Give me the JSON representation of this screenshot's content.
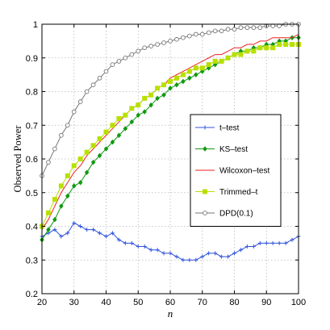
{
  "chart_data": {
    "type": "line",
    "xlabel": "n",
    "ylabel": "Observed Power",
    "xlim": [
      20,
      100
    ],
    "ylim": [
      0.2,
      1.0
    ],
    "xticks": [
      20,
      30,
      40,
      50,
      60,
      70,
      80,
      90,
      100
    ],
    "yticks": [
      0.2,
      0.3,
      0.4,
      0.5,
      0.6,
      0.7,
      0.8,
      0.9,
      1.0
    ],
    "grid": true,
    "legend_position": "right",
    "series": [
      {
        "name": "t–test",
        "color": "#3355dd",
        "marker": "plus",
        "x": [
          20,
          22,
          24,
          26,
          28,
          30,
          32,
          34,
          36,
          38,
          40,
          42,
          44,
          46,
          48,
          50,
          52,
          54,
          56,
          58,
          60,
          62,
          64,
          66,
          68,
          70,
          72,
          74,
          76,
          78,
          80,
          82,
          84,
          86,
          88,
          90,
          92,
          94,
          96,
          98,
          100
        ],
        "y": [
          0.37,
          0.38,
          0.39,
          0.37,
          0.38,
          0.41,
          0.4,
          0.39,
          0.39,
          0.38,
          0.37,
          0.38,
          0.36,
          0.35,
          0.35,
          0.34,
          0.34,
          0.33,
          0.33,
          0.32,
          0.32,
          0.31,
          0.3,
          0.3,
          0.3,
          0.31,
          0.32,
          0.32,
          0.31,
          0.31,
          0.32,
          0.33,
          0.34,
          0.34,
          0.35,
          0.35,
          0.35,
          0.35,
          0.35,
          0.36,
          0.37
        ]
      },
      {
        "name": "KS–test",
        "color": "#119911",
        "marker": "diamond",
        "x": [
          20,
          22,
          24,
          26,
          28,
          30,
          32,
          34,
          36,
          38,
          40,
          42,
          44,
          46,
          48,
          50,
          52,
          54,
          56,
          58,
          60,
          62,
          64,
          66,
          68,
          70,
          72,
          74,
          76,
          78,
          80,
          82,
          84,
          86,
          88,
          90,
          92,
          94,
          96,
          98,
          100
        ],
        "y": [
          0.36,
          0.39,
          0.42,
          0.46,
          0.49,
          0.52,
          0.53,
          0.56,
          0.59,
          0.61,
          0.63,
          0.65,
          0.67,
          0.69,
          0.71,
          0.73,
          0.74,
          0.76,
          0.78,
          0.79,
          0.81,
          0.82,
          0.83,
          0.84,
          0.85,
          0.86,
          0.87,
          0.88,
          0.89,
          0.9,
          0.91,
          0.92,
          0.92,
          0.93,
          0.93,
          0.94,
          0.94,
          0.95,
          0.95,
          0.96,
          0.96
        ]
      },
      {
        "name": "Wilcoxon–test",
        "color": "#ee2222",
        "marker": "none",
        "x": [
          20,
          22,
          24,
          26,
          28,
          30,
          32,
          34,
          36,
          38,
          40,
          42,
          44,
          46,
          48,
          50,
          52,
          54,
          56,
          58,
          60,
          62,
          64,
          66,
          68,
          70,
          72,
          74,
          76,
          78,
          80,
          82,
          84,
          86,
          88,
          90,
          92,
          94,
          96,
          98,
          100
        ],
        "y": [
          0.39,
          0.42,
          0.46,
          0.5,
          0.53,
          0.56,
          0.58,
          0.61,
          0.63,
          0.65,
          0.67,
          0.69,
          0.71,
          0.73,
          0.75,
          0.76,
          0.78,
          0.79,
          0.81,
          0.82,
          0.84,
          0.85,
          0.86,
          0.87,
          0.88,
          0.89,
          0.9,
          0.91,
          0.91,
          0.92,
          0.93,
          0.93,
          0.94,
          0.94,
          0.95,
          0.95,
          0.96,
          0.96,
          0.96,
          0.96,
          0.97
        ]
      },
      {
        "name": "Trimmed–t",
        "color": "#b8e000",
        "marker": "square",
        "x": [
          20,
          22,
          24,
          26,
          28,
          30,
          32,
          34,
          36,
          38,
          40,
          42,
          44,
          46,
          48,
          50,
          52,
          54,
          56,
          58,
          60,
          62,
          64,
          66,
          68,
          70,
          72,
          74,
          76,
          78,
          80,
          82,
          84,
          86,
          88,
          90,
          92,
          94,
          96,
          98,
          100
        ],
        "y": [
          0.4,
          0.44,
          0.48,
          0.52,
          0.55,
          0.58,
          0.6,
          0.62,
          0.64,
          0.66,
          0.68,
          0.7,
          0.72,
          0.73,
          0.75,
          0.76,
          0.78,
          0.79,
          0.81,
          0.82,
          0.83,
          0.84,
          0.85,
          0.86,
          0.87,
          0.87,
          0.88,
          0.89,
          0.89,
          0.9,
          0.91,
          0.91,
          0.92,
          0.92,
          0.93,
          0.93,
          0.93,
          0.94,
          0.94,
          0.94,
          0.94
        ]
      },
      {
        "name": "DPD(0.1)",
        "color": "#777777",
        "marker": "circle",
        "x": [
          20,
          22,
          24,
          26,
          28,
          30,
          32,
          34,
          36,
          38,
          40,
          42,
          44,
          46,
          48,
          50,
          52,
          54,
          56,
          58,
          60,
          62,
          64,
          66,
          68,
          70,
          72,
          74,
          76,
          78,
          80,
          82,
          84,
          86,
          88,
          90,
          92,
          94,
          96,
          98,
          100
        ],
        "y": [
          0.55,
          0.59,
          0.63,
          0.67,
          0.7,
          0.74,
          0.77,
          0.8,
          0.82,
          0.84,
          0.86,
          0.88,
          0.89,
          0.9,
          0.91,
          0.92,
          0.93,
          0.935,
          0.94,
          0.945,
          0.95,
          0.955,
          0.96,
          0.965,
          0.97,
          0.97,
          0.975,
          0.98,
          0.98,
          0.985,
          0.985,
          0.99,
          0.99,
          0.99,
          0.99,
          0.995,
          0.995,
          0.995,
          1.0,
          1.0,
          1.0
        ]
      }
    ]
  }
}
